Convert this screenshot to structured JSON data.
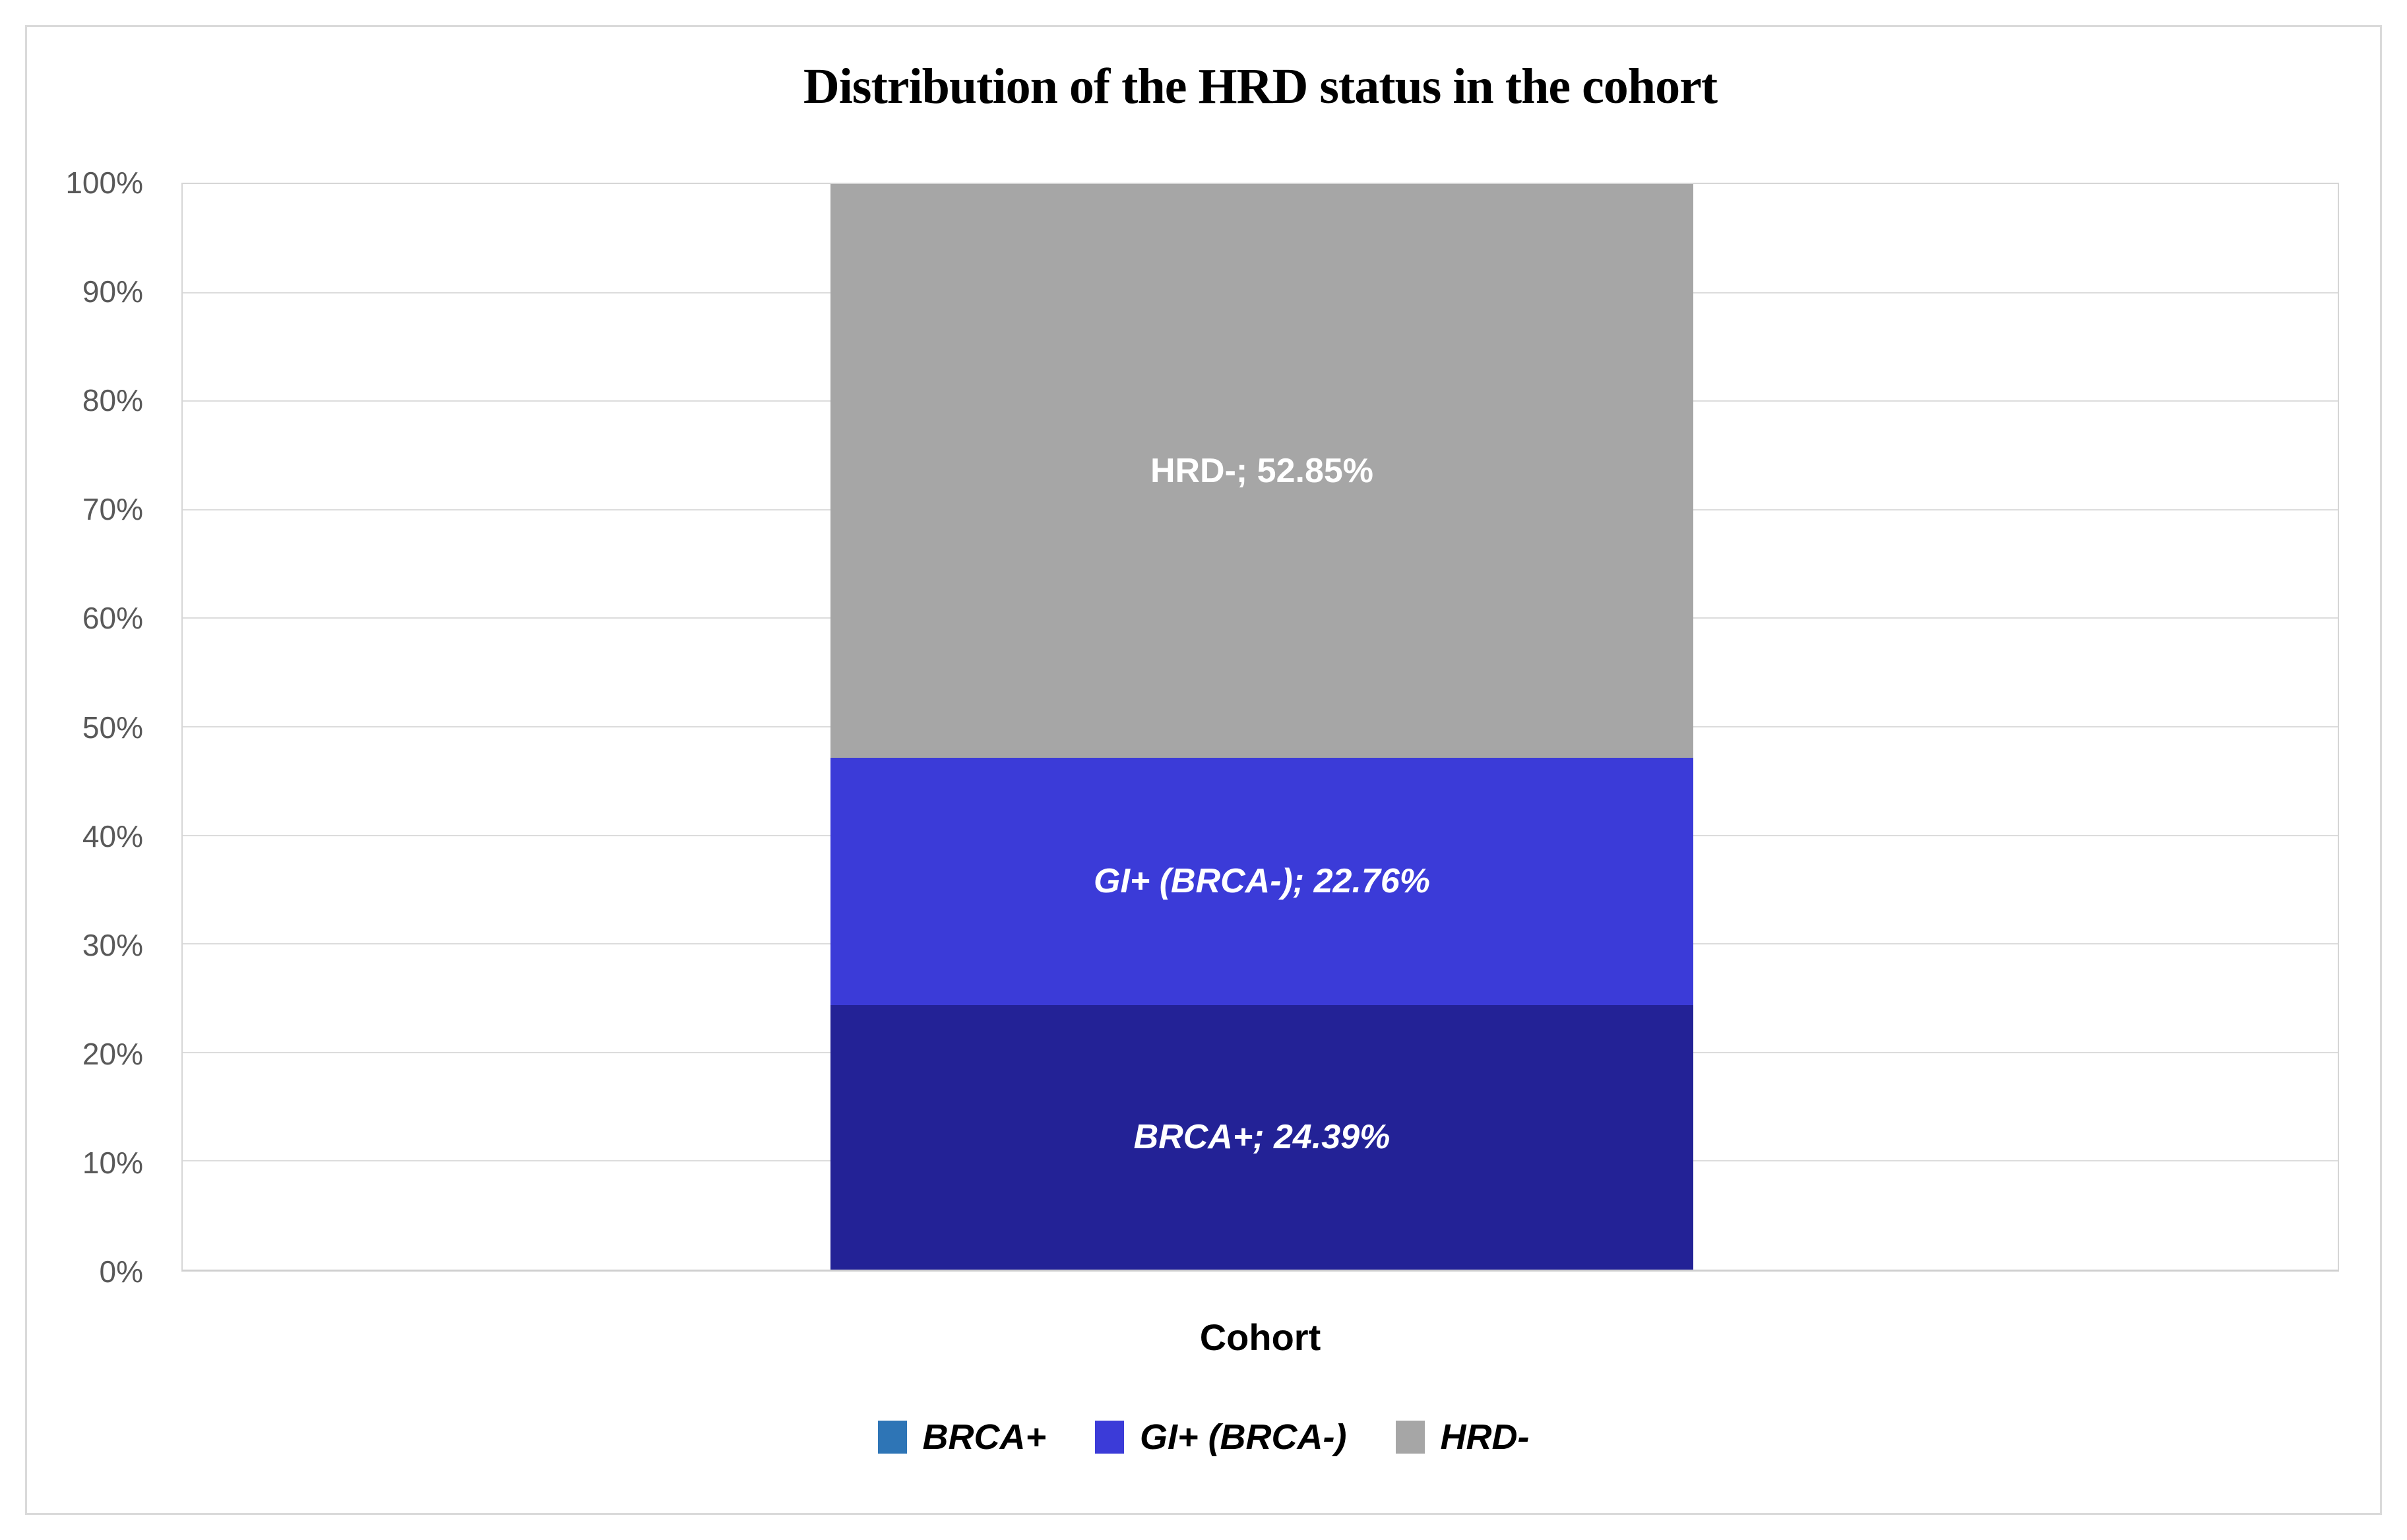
{
  "chart_data": {
    "type": "bar",
    "stacked": true,
    "title": "Distribution of the HRD status in the cohort",
    "xlabel": "Cohort",
    "categories": [
      "Cohort"
    ],
    "series": [
      {
        "name": "BRCA+",
        "value": 24.39,
        "data_label": "BRCA+; 24.39%",
        "fill_color": "#232296",
        "legend_color": "#2e75b6",
        "label_italic": true
      },
      {
        "name": "GI+ (BRCA-)",
        "value": 22.76,
        "data_label": "GI+ (BRCA-); 22.76%",
        "fill_color": "#3b3bd8",
        "legend_color": "#3b3bd8",
        "label_italic": true
      },
      {
        "name": "HRD-",
        "value": 52.85,
        "data_label": "HRD-; 52.85%",
        "fill_color": "#a6a6a6",
        "legend_color": "#a6a6a6",
        "label_italic": false
      }
    ],
    "y_axis": {
      "min": 0,
      "max": 100,
      "step": 10,
      "ticks": [
        "100%",
        "90%",
        "80%",
        "70%",
        "60%",
        "50%",
        "40%",
        "30%",
        "20%",
        "10%",
        "0%"
      ]
    },
    "legend_position": "bottom",
    "grid": true,
    "colors": {
      "grid": "#dcdcdc",
      "tick_text": "#595959",
      "data_label_text": "#ffffff",
      "title_text": "#000000",
      "figure_border": "#dadada"
    }
  }
}
